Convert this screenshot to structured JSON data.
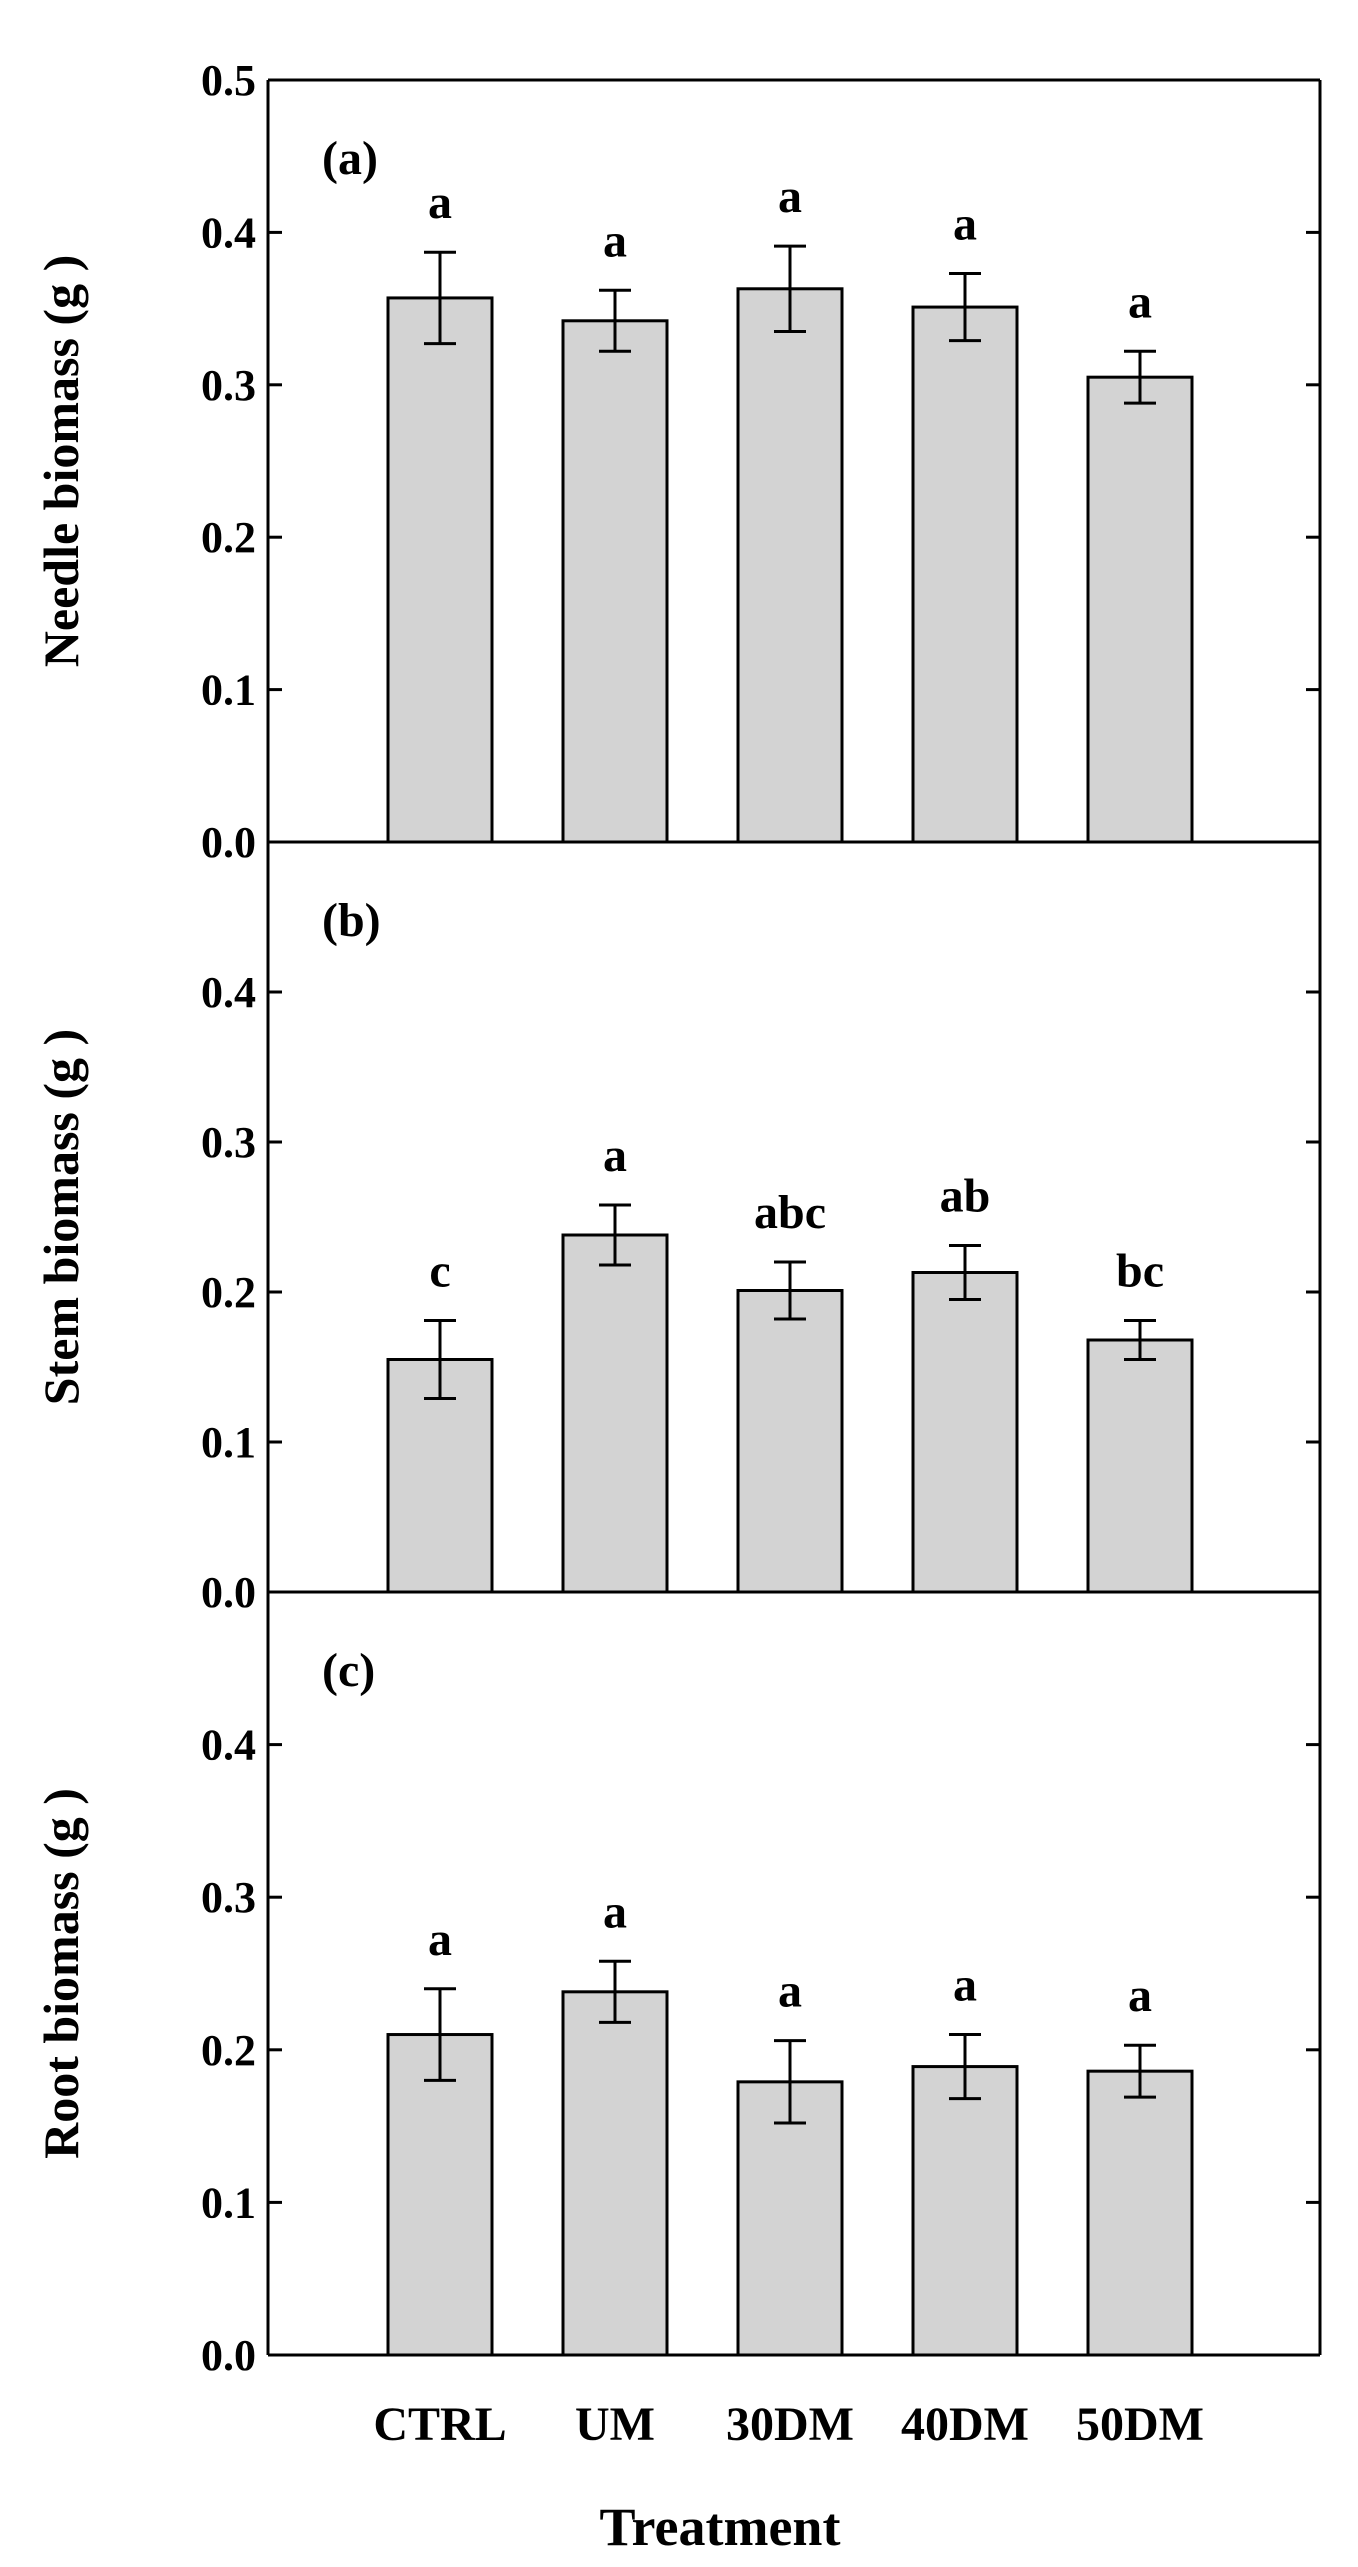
{
  "chart_data": [
    {
      "type": "bar",
      "panel": "(a)",
      "ylabel": "Needle biomass (g )",
      "ylim": [
        0,
        0.5
      ],
      "yticks": [
        "0.0",
        "0.1",
        "0.2",
        "0.3",
        "0.4",
        "0.5"
      ],
      "categories": [
        "CTRL",
        "UM",
        "30DM",
        "40DM",
        "50DM"
      ],
      "values": [
        0.357,
        0.342,
        0.363,
        0.351,
        0.305
      ],
      "errors": [
        0.03,
        0.02,
        0.028,
        0.022,
        0.017
      ],
      "letters": [
        "a",
        "a",
        "a",
        "a",
        "a"
      ],
      "bar_color": "#d3d3d3"
    },
    {
      "type": "bar",
      "panel": "(b)",
      "ylabel": "Stem biomass (g )",
      "ylim": [
        0,
        0.5
      ],
      "yticks": [
        "0.0",
        "0.1",
        "0.2",
        "0.3",
        "0.4"
      ],
      "categories": [
        "CTRL",
        "UM",
        "30DM",
        "40DM",
        "50DM"
      ],
      "values": [
        0.155,
        0.238,
        0.201,
        0.213,
        0.168
      ],
      "errors": [
        0.026,
        0.02,
        0.019,
        0.018,
        0.013
      ],
      "letters": [
        "c",
        "a",
        "abc",
        "ab",
        "bc"
      ],
      "bar_color": "#d3d3d3"
    },
    {
      "type": "bar",
      "panel": "(c)",
      "ylabel": "Root biomass (g )",
      "ylim": [
        0,
        0.5
      ],
      "yticks": [
        "0.0",
        "0.1",
        "0.2",
        "0.3",
        "0.4"
      ],
      "categories": [
        "CTRL",
        "UM",
        "30DM",
        "40DM",
        "50DM"
      ],
      "values": [
        0.21,
        0.238,
        0.179,
        0.189,
        0.186
      ],
      "errors": [
        0.03,
        0.02,
        0.027,
        0.021,
        0.017
      ],
      "letters": [
        "a",
        "a",
        "a",
        "a",
        "a"
      ],
      "bar_color": "#d3d3d3"
    }
  ],
  "xlabel": "Treatment"
}
